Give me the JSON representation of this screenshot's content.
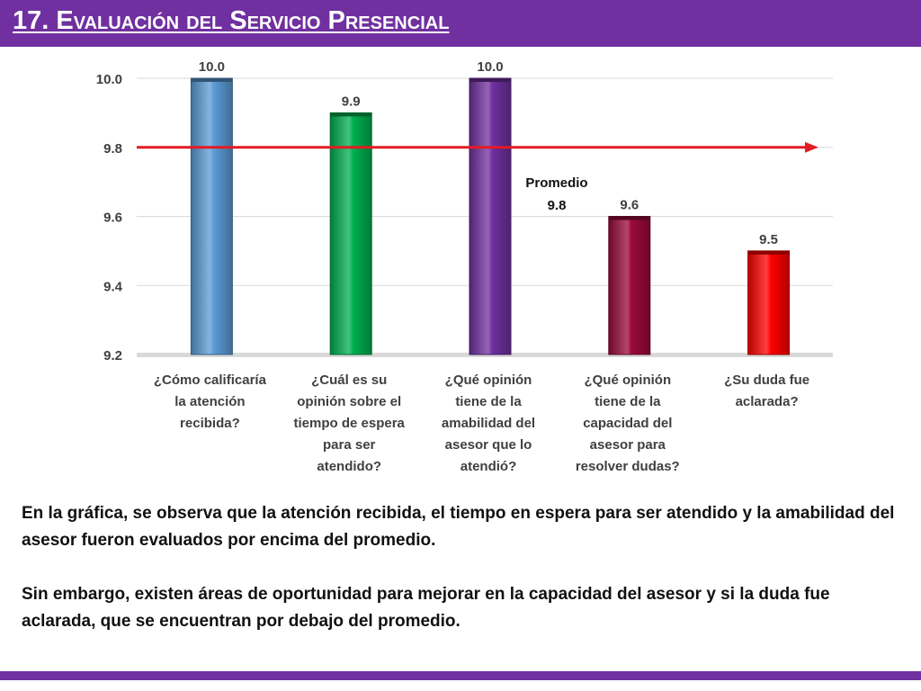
{
  "slide": {
    "title": "17. Evaluación del Servicio Presencial",
    "paragraphs": [
      "En la gráfica, se observa que la atención recibida, el tiempo en espera para ser atendido y la amabilidad del asesor fueron evaluados por encima del promedio.",
      "Sin embargo, existen áreas de oportunidad para mejorar en la capacidad del asesor y si la duda fue aclarada, que se encuentran por debajo del promedio."
    ],
    "accent_color": "#7030a0"
  },
  "chart_data": {
    "type": "bar",
    "categories": [
      [
        "¿Cómo calificaría",
        "la atención",
        "recibida?"
      ],
      [
        "¿Cuál es su",
        "opinión sobre el",
        "tiempo de espera",
        "para ser",
        "atendido?"
      ],
      [
        "¿Qué opinión",
        "tiene de la",
        "amabilidad del",
        "asesor que lo",
        "atendió?"
      ],
      [
        "¿Qué opinión",
        "tiene de la",
        "capacidad del",
        "asesor para",
        "resolver dudas?"
      ],
      [
        "¿Su duda fue",
        "aclarada?"
      ]
    ],
    "values": [
      10.0,
      9.9,
      10.0,
      9.6,
      9.5
    ],
    "value_labels": [
      "10.0",
      "9.9",
      "10.0",
      "9.6",
      "9.5"
    ],
    "bar_colors": [
      "#5b9bd5",
      "#00b050",
      "#7030a0",
      "#9b0a3a",
      "#ff0000"
    ],
    "ylim": [
      9.2,
      10.0
    ],
    "yticks": [
      9.2,
      9.4,
      9.6,
      9.8,
      10.0
    ],
    "ytick_labels": [
      "9.2",
      "9.4",
      "9.6",
      "9.8",
      "10.0"
    ],
    "reference_line": {
      "value": 9.8,
      "label": [
        "Promedio",
        "9.8"
      ],
      "color": "#e31b23"
    },
    "grid": true
  }
}
